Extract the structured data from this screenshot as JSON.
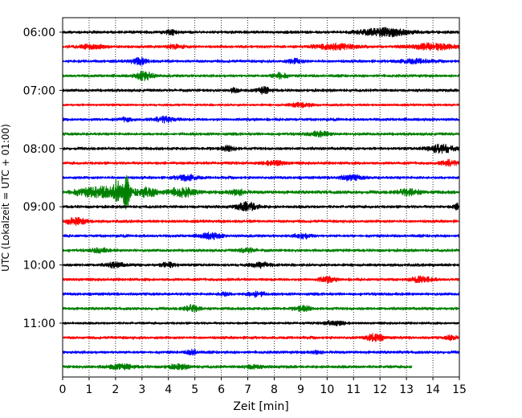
{
  "chart_data": {
    "type": "line",
    "title": "",
    "xlabel": "Zeit  [min]",
    "ylabel": "UTC (Lokalzeit = UTC + 01:00)",
    "xlim": [
      0,
      15
    ],
    "x_ticks": [
      "0",
      "1",
      "2",
      "3",
      "4",
      "5",
      "6",
      "7",
      "8",
      "9",
      "10",
      "11",
      "12",
      "13",
      "14",
      "15"
    ],
    "y_ticks": [
      "06:00",
      "07:00",
      "08:00",
      "09:00",
      "10:00",
      "11:00"
    ],
    "grid": "vertical dotted lines at each minute",
    "colors_cycle": [
      "#000000",
      "#ff0000",
      "#0000ff",
      "#008000"
    ],
    "traces_per_hour": 4,
    "trace_length_min": 15,
    "series": [
      {
        "start": "06:00",
        "color": "#000000",
        "base_amp": 0.3,
        "events": [
          {
            "t": 4.1,
            "amp": 0.55,
            "w": 0.25
          },
          {
            "t": 12.2,
            "amp": 0.9,
            "w": 0.9
          }
        ]
      },
      {
        "start": "06:15",
        "color": "#ff0000",
        "base_amp": 0.3,
        "events": [
          {
            "t": 1.1,
            "amp": 0.45,
            "w": 0.5
          },
          {
            "t": 4.3,
            "amp": 0.45,
            "w": 0.3
          },
          {
            "t": 10.3,
            "amp": 0.6,
            "w": 0.8
          },
          {
            "t": 14.0,
            "amp": 0.7,
            "w": 0.8
          }
        ]
      },
      {
        "start": "06:30",
        "color": "#0000ff",
        "base_amp": 0.3,
        "events": [
          {
            "t": 2.9,
            "amp": 0.7,
            "w": 0.3
          },
          {
            "t": 8.8,
            "amp": 0.5,
            "w": 0.3
          },
          {
            "t": 13.3,
            "amp": 0.45,
            "w": 0.6
          }
        ]
      },
      {
        "start": "06:45",
        "color": "#008000",
        "base_amp": 0.3,
        "events": [
          {
            "t": 3.1,
            "amp": 1.1,
            "w": 0.3
          },
          {
            "t": 8.2,
            "amp": 0.8,
            "w": 0.25
          }
        ]
      },
      {
        "start": "07:00",
        "color": "#000000",
        "base_amp": 0.3,
        "events": [
          {
            "t": 7.6,
            "amp": 0.7,
            "w": 0.25
          },
          {
            "t": 6.5,
            "amp": 0.45,
            "w": 0.2
          }
        ]
      },
      {
        "start": "07:15",
        "color": "#ff0000",
        "base_amp": 0.25,
        "events": [
          {
            "t": 9.0,
            "amp": 0.5,
            "w": 0.4
          }
        ]
      },
      {
        "start": "07:30",
        "color": "#0000ff",
        "base_amp": 0.3,
        "events": [
          {
            "t": 3.9,
            "amp": 0.6,
            "w": 0.4
          },
          {
            "t": 2.4,
            "amp": 0.45,
            "w": 0.2
          }
        ]
      },
      {
        "start": "07:45",
        "color": "#008000",
        "base_amp": 0.3,
        "events": [
          {
            "t": 9.7,
            "amp": 0.5,
            "w": 0.4
          }
        ]
      },
      {
        "start": "08:00",
        "color": "#000000",
        "base_amp": 0.3,
        "events": [
          {
            "t": 6.3,
            "amp": 0.55,
            "w": 0.25
          },
          {
            "t": 14.3,
            "amp": 1.0,
            "w": 0.5
          }
        ]
      },
      {
        "start": "08:15",
        "color": "#ff0000",
        "base_amp": 0.3,
        "events": [
          {
            "t": 8.0,
            "amp": 0.55,
            "w": 0.4
          },
          {
            "t": 14.6,
            "amp": 0.6,
            "w": 0.3
          }
        ]
      },
      {
        "start": "08:30",
        "color": "#0000ff",
        "base_amp": 0.3,
        "events": [
          {
            "t": 4.7,
            "amp": 0.65,
            "w": 0.4
          },
          {
            "t": 10.9,
            "amp": 0.6,
            "w": 0.4
          }
        ]
      },
      {
        "start": "08:45",
        "color": "#008000",
        "base_amp": 0.35,
        "events": [
          {
            "t": 1.5,
            "amp": 1.2,
            "w": 1.0
          },
          {
            "t": 2.05,
            "amp": 3.5,
            "w": 0.1
          },
          {
            "t": 2.4,
            "amp": 3.8,
            "w": 0.12
          },
          {
            "t": 3.2,
            "amp": 1.0,
            "w": 0.4
          },
          {
            "t": 4.5,
            "amp": 1.0,
            "w": 0.5
          },
          {
            "t": 6.6,
            "amp": 0.7,
            "w": 0.3
          },
          {
            "t": 13.1,
            "amp": 0.7,
            "w": 0.4
          }
        ]
      },
      {
        "start": "09:00",
        "color": "#000000",
        "base_amp": 0.3,
        "events": [
          {
            "t": 7.0,
            "amp": 1.0,
            "w": 0.4
          },
          {
            "t": 14.9,
            "amp": 0.6,
            "w": 0.15
          }
        ]
      },
      {
        "start": "09:15",
        "color": "#ff0000",
        "base_amp": 0.3,
        "events": [
          {
            "t": 0.5,
            "amp": 0.8,
            "w": 0.4
          }
        ]
      },
      {
        "start": "09:30",
        "color": "#0000ff",
        "base_amp": 0.3,
        "events": [
          {
            "t": 5.6,
            "amp": 0.65,
            "w": 0.4
          },
          {
            "t": 9.1,
            "amp": 0.55,
            "w": 0.3
          }
        ]
      },
      {
        "start": "09:45",
        "color": "#008000",
        "base_amp": 0.3,
        "events": [
          {
            "t": 1.4,
            "amp": 0.5,
            "w": 0.3
          },
          {
            "t": 7.0,
            "amp": 0.5,
            "w": 0.3
          }
        ]
      },
      {
        "start": "10:00",
        "color": "#000000",
        "base_amp": 0.3,
        "events": [
          {
            "t": 2.0,
            "amp": 0.6,
            "w": 0.3
          },
          {
            "t": 4.0,
            "amp": 0.5,
            "w": 0.3
          },
          {
            "t": 7.5,
            "amp": 0.5,
            "w": 0.4
          }
        ]
      },
      {
        "start": "10:15",
        "color": "#ff0000",
        "base_amp": 0.3,
        "events": [
          {
            "t": 10.0,
            "amp": 0.6,
            "w": 0.3
          },
          {
            "t": 13.6,
            "amp": 0.6,
            "w": 0.4
          }
        ]
      },
      {
        "start": "10:30",
        "color": "#0000ff",
        "base_amp": 0.3,
        "events": [
          {
            "t": 7.3,
            "amp": 0.65,
            "w": 0.3
          },
          {
            "t": 6.1,
            "amp": 0.45,
            "w": 0.2
          }
        ]
      },
      {
        "start": "10:45",
        "color": "#008000",
        "base_amp": 0.3,
        "events": [
          {
            "t": 4.9,
            "amp": 0.7,
            "w": 0.3
          },
          {
            "t": 9.1,
            "amp": 0.5,
            "w": 0.3
          }
        ]
      },
      {
        "start": "11:00",
        "color": "#000000",
        "base_amp": 0.25,
        "events": [
          {
            "t": 10.3,
            "amp": 0.5,
            "w": 0.4
          }
        ]
      },
      {
        "start": "11:15",
        "color": "#ff0000",
        "base_amp": 0.3,
        "events": [
          {
            "t": 11.8,
            "amp": 0.9,
            "w": 0.3
          },
          {
            "t": 14.7,
            "amp": 0.5,
            "w": 0.2
          }
        ]
      },
      {
        "start": "11:30",
        "color": "#0000ff",
        "base_amp": 0.3,
        "events": [
          {
            "t": 4.9,
            "amp": 0.6,
            "w": 0.2
          },
          {
            "t": 9.6,
            "amp": 0.4,
            "w": 0.2
          }
        ]
      },
      {
        "start": "11:45",
        "color": "#008000",
        "base_amp": 0.3,
        "end_t": 13.2,
        "events": [
          {
            "t": 2.2,
            "amp": 0.5,
            "w": 0.5
          },
          {
            "t": 4.4,
            "amp": 0.45,
            "w": 0.4
          },
          {
            "t": 7.2,
            "amp": 0.4,
            "w": 0.3
          }
        ]
      }
    ]
  }
}
